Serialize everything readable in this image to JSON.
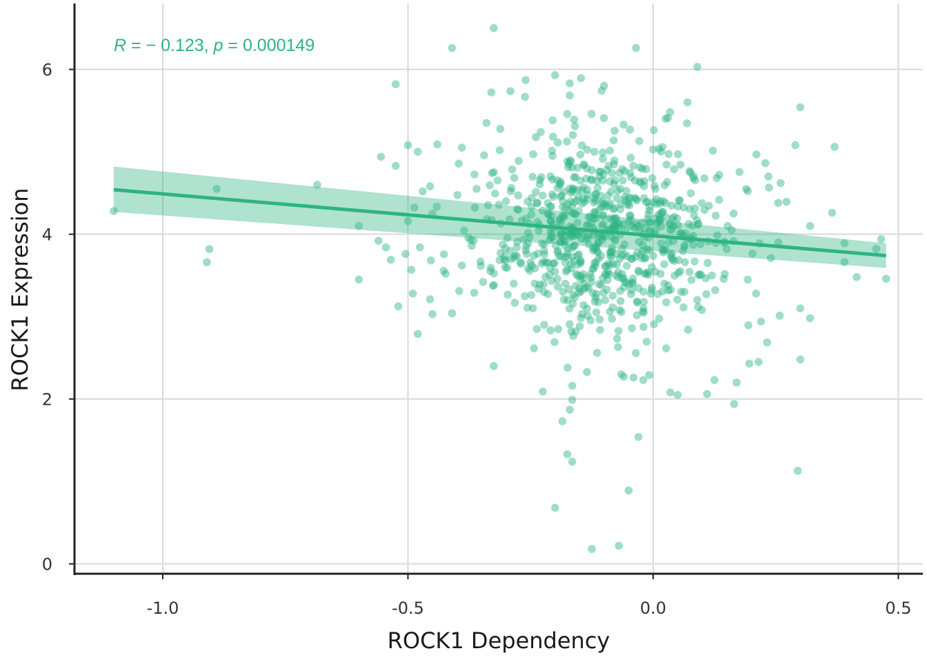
{
  "chart_data": {
    "type": "scatter",
    "xlabel": "ROCK1 Dependency",
    "ylabel": "ROCK1 Expression",
    "xlim": [
      -1.18,
      0.55
    ],
    "ylim": [
      -0.12,
      6.8
    ],
    "x_ticks": [
      -1.0,
      -0.5,
      0.0,
      0.5
    ],
    "x_tick_labels": [
      "-1.0",
      "-0.5",
      "0.0",
      "0.5"
    ],
    "y_ticks": [
      0,
      2,
      4,
      6
    ],
    "y_tick_labels": [
      "0",
      "2",
      "4",
      "6"
    ],
    "grid": true,
    "annotation": {
      "r_symbol": "R",
      "r_text": " = − 0.123, ",
      "p_symbol": "p",
      "p_text": " = 0.000149"
    },
    "colors": {
      "points": "#2db482",
      "line": "#2db482",
      "band": "#2db482",
      "annotation": "#2db482",
      "grid": "#d9d9d9",
      "axis": "#222222"
    },
    "regression": {
      "x": [
        -1.1,
        0.475
      ],
      "y": [
        4.54,
        3.74
      ],
      "upper": [
        4.82,
        3.89
      ],
      "lower": [
        4.27,
        3.59
      ]
    },
    "highlighted_points": [
      {
        "x": -1.1,
        "y": 4.28
      },
      {
        "x": -0.89,
        "y": 4.55
      },
      {
        "x": -0.905,
        "y": 3.82
      },
      {
        "x": -0.91,
        "y": 3.66
      },
      {
        "x": -0.685,
        "y": 4.6
      },
      {
        "x": -0.6,
        "y": 3.45
      },
      {
        "x": -0.6,
        "y": 4.1
      },
      {
        "x": -0.525,
        "y": 5.82
      },
      {
        "x": -0.41,
        "y": 6.26
      },
      {
        "x": -0.325,
        "y": 6.5
      },
      {
        "x": -0.035,
        "y": 6.26
      },
      {
        "x": 0.09,
        "y": 6.03
      },
      {
        "x": -0.2,
        "y": 5.93
      },
      {
        "x": 0.3,
        "y": 5.54
      },
      {
        "x": 0.37,
        "y": 5.06
      },
      {
        "x": 0.29,
        "y": 5.08
      },
      {
        "x": 0.365,
        "y": 4.26
      },
      {
        "x": 0.475,
        "y": 3.46
      },
      {
        "x": 0.415,
        "y": 3.48
      },
      {
        "x": 0.455,
        "y": 3.82
      },
      {
        "x": 0.465,
        "y": 3.94
      },
      {
        "x": 0.39,
        "y": 3.89
      },
      {
        "x": 0.39,
        "y": 3.66
      },
      {
        "x": 0.32,
        "y": 4.1
      },
      {
        "x": 0.3,
        "y": 3.1
      },
      {
        "x": 0.32,
        "y": 2.98
      },
      {
        "x": 0.3,
        "y": 2.48
      },
      {
        "x": 0.295,
        "y": 1.13
      },
      {
        "x": 0.22,
        "y": 2.94
      },
      {
        "x": 0.215,
        "y": 2.45
      },
      {
        "x": 0.17,
        "y": 2.2
      },
      {
        "x": 0.165,
        "y": 1.94
      },
      {
        "x": 0.11,
        "y": 2.06
      },
      {
        "x": 0.125,
        "y": 2.23
      },
      {
        "x": -0.325,
        "y": 2.4
      },
      {
        "x": -0.225,
        "y": 2.09
      },
      {
        "x": -0.165,
        "y": 1.99
      },
      {
        "x": -0.165,
        "y": 2.16
      },
      {
        "x": -0.17,
        "y": 1.87
      },
      {
        "x": -0.185,
        "y": 1.73
      },
      {
        "x": -0.175,
        "y": 1.33
      },
      {
        "x": -0.165,
        "y": 1.24
      },
      {
        "x": -0.03,
        "y": 1.54
      },
      {
        "x": -0.05,
        "y": 0.89
      },
      {
        "x": -0.2,
        "y": 0.68
      },
      {
        "x": -0.125,
        "y": 0.18
      },
      {
        "x": -0.07,
        "y": 0.22
      },
      {
        "x": 0.035,
        "y": 2.08
      },
      {
        "x": 0.05,
        "y": 2.05
      },
      {
        "x": -0.06,
        "y": 2.27
      },
      {
        "x": -0.04,
        "y": 2.26
      },
      {
        "x": -0.02,
        "y": 2.23
      },
      {
        "x": -0.065,
        "y": 2.3
      },
      {
        "x": -0.48,
        "y": 2.79
      },
      {
        "x": -0.455,
        "y": 3.21
      },
      {
        "x": -0.45,
        "y": 3.03
      },
      {
        "x": -0.49,
        "y": 3.28
      },
      {
        "x": -0.525,
        "y": 4.83
      },
      {
        "x": -0.555,
        "y": 4.94
      },
      {
        "x": -0.545,
        "y": 3.84
      },
      {
        "x": -0.56,
        "y": 3.92
      },
      {
        "x": -0.535,
        "y": 3.69
      },
      {
        "x": -0.505,
        "y": 3.76
      },
      {
        "x": -0.5,
        "y": 4.16
      },
      {
        "x": -0.33,
        "y": 5.72
      },
      {
        "x": -0.26,
        "y": 5.87
      },
      {
        "x": -0.17,
        "y": 5.83
      },
      {
        "x": -0.1,
        "y": 5.8
      },
      {
        "x": -0.12,
        "y": 5.0
      },
      {
        "x": 0.07,
        "y": 5.6
      },
      {
        "x": 0.03,
        "y": 5.41
      },
      {
        "x": 0.26,
        "y": 4.62
      },
      {
        "x": 0.235,
        "y": 4.7
      },
      {
        "x": 0.255,
        "y": 4.38
      },
      {
        "x": 0.255,
        "y": 3.9
      },
      {
        "x": 0.24,
        "y": 3.71
      },
      {
        "x": 0.21,
        "y": 3.28
      },
      {
        "x": -0.47,
        "y": 4.52
      },
      {
        "x": -0.455,
        "y": 4.58
      },
      {
        "x": -0.45,
        "y": 4.25
      },
      {
        "x": -0.5,
        "y": 5.08
      },
      {
        "x": -0.48,
        "y": 5.0
      },
      {
        "x": -0.44,
        "y": 5.09
      },
      {
        "x": -0.39,
        "y": 5.05
      },
      {
        "x": -0.41,
        "y": 3.04
      },
      {
        "x": -0.39,
        "y": 3.62
      },
      {
        "x": -0.365,
        "y": 3.29
      },
      {
        "x": -0.37,
        "y": 3.86
      },
      {
        "x": -0.36,
        "y": 4.55
      },
      {
        "x": -0.34,
        "y": 5.35
      }
    ],
    "cloud_summary": {
      "n": 760,
      "x_mean": -0.1,
      "x_sd": 0.13,
      "y_mean": 4.0,
      "y_sd": 0.6
    }
  }
}
